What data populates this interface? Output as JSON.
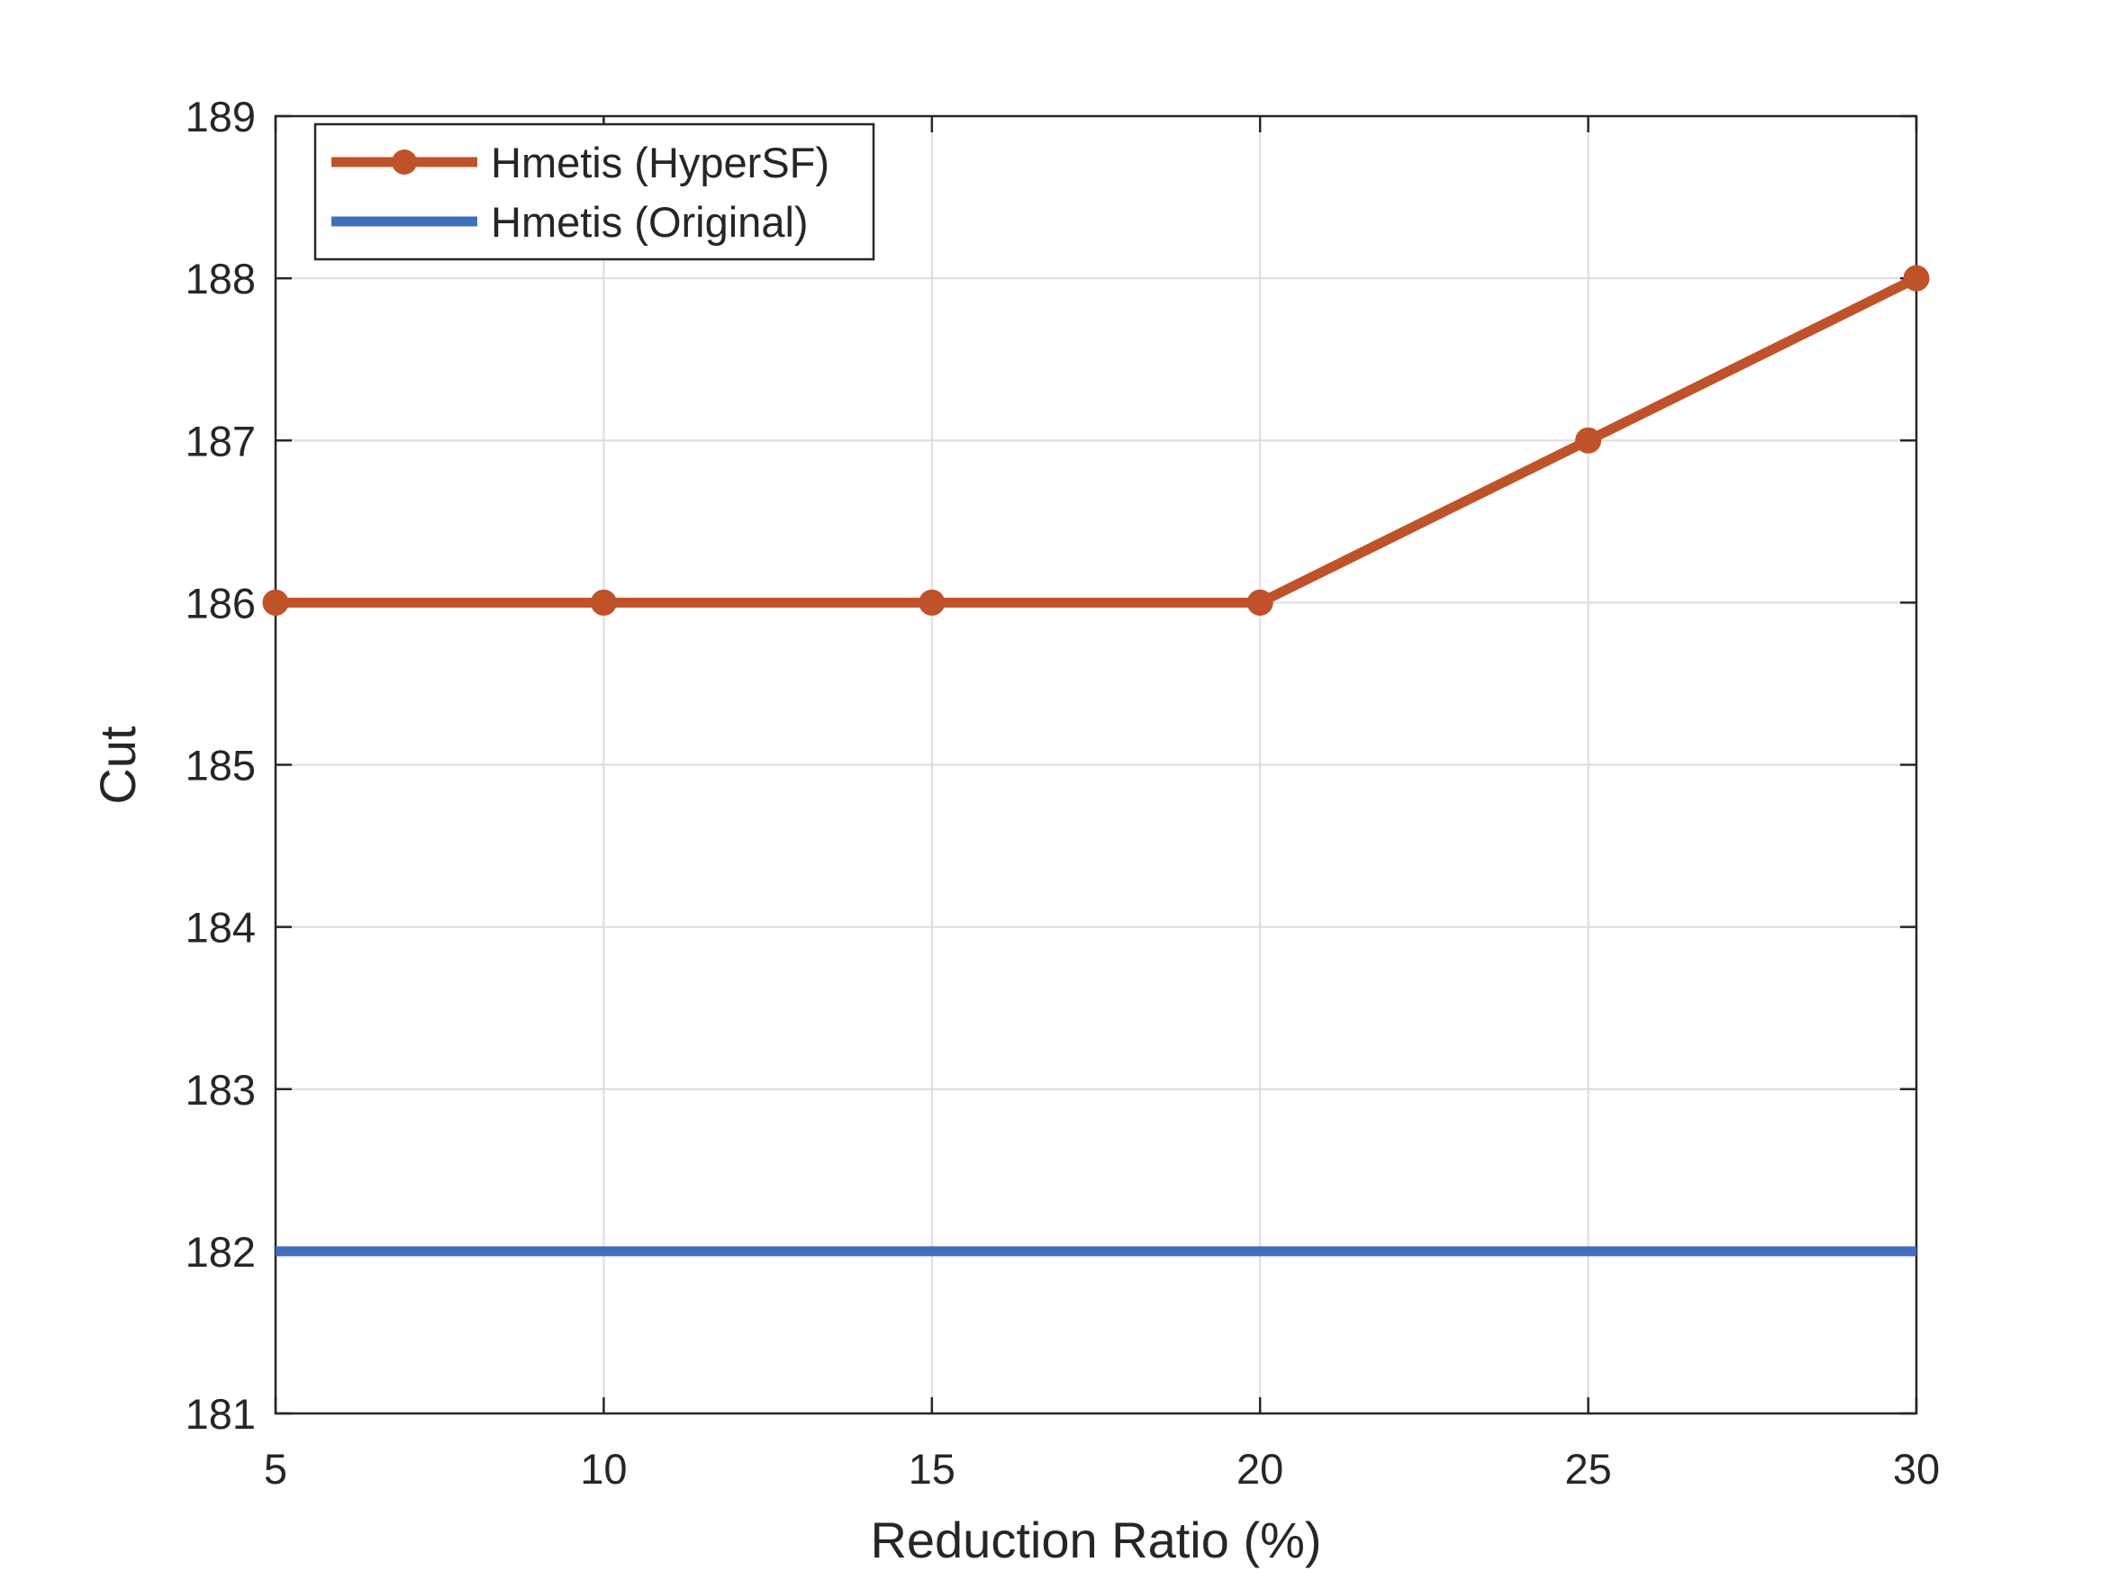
{
  "chart_data": {
    "type": "line",
    "xlabel": "Reduction Ratio (%)",
    "ylabel": "Cut",
    "xlim": [
      5,
      30
    ],
    "ylim": [
      181,
      189
    ],
    "x_ticks": [
      5,
      10,
      15,
      20,
      25,
      30
    ],
    "y_ticks": [
      181,
      182,
      183,
      184,
      185,
      186,
      187,
      188,
      189
    ],
    "grid": true,
    "legend_position": "top-left",
    "series": [
      {
        "name": "Hmetis (HyperSF)",
        "color": "#C0522A",
        "marker": "circle",
        "x": [
          5,
          10,
          15,
          20,
          25,
          30
        ],
        "y": [
          186,
          186,
          186,
          186,
          187,
          188
        ]
      },
      {
        "name": "Hmetis (Original)",
        "color": "#3F6FBD",
        "marker": "none",
        "x": [
          5,
          30
        ],
        "y": [
          182,
          182
        ]
      }
    ]
  }
}
